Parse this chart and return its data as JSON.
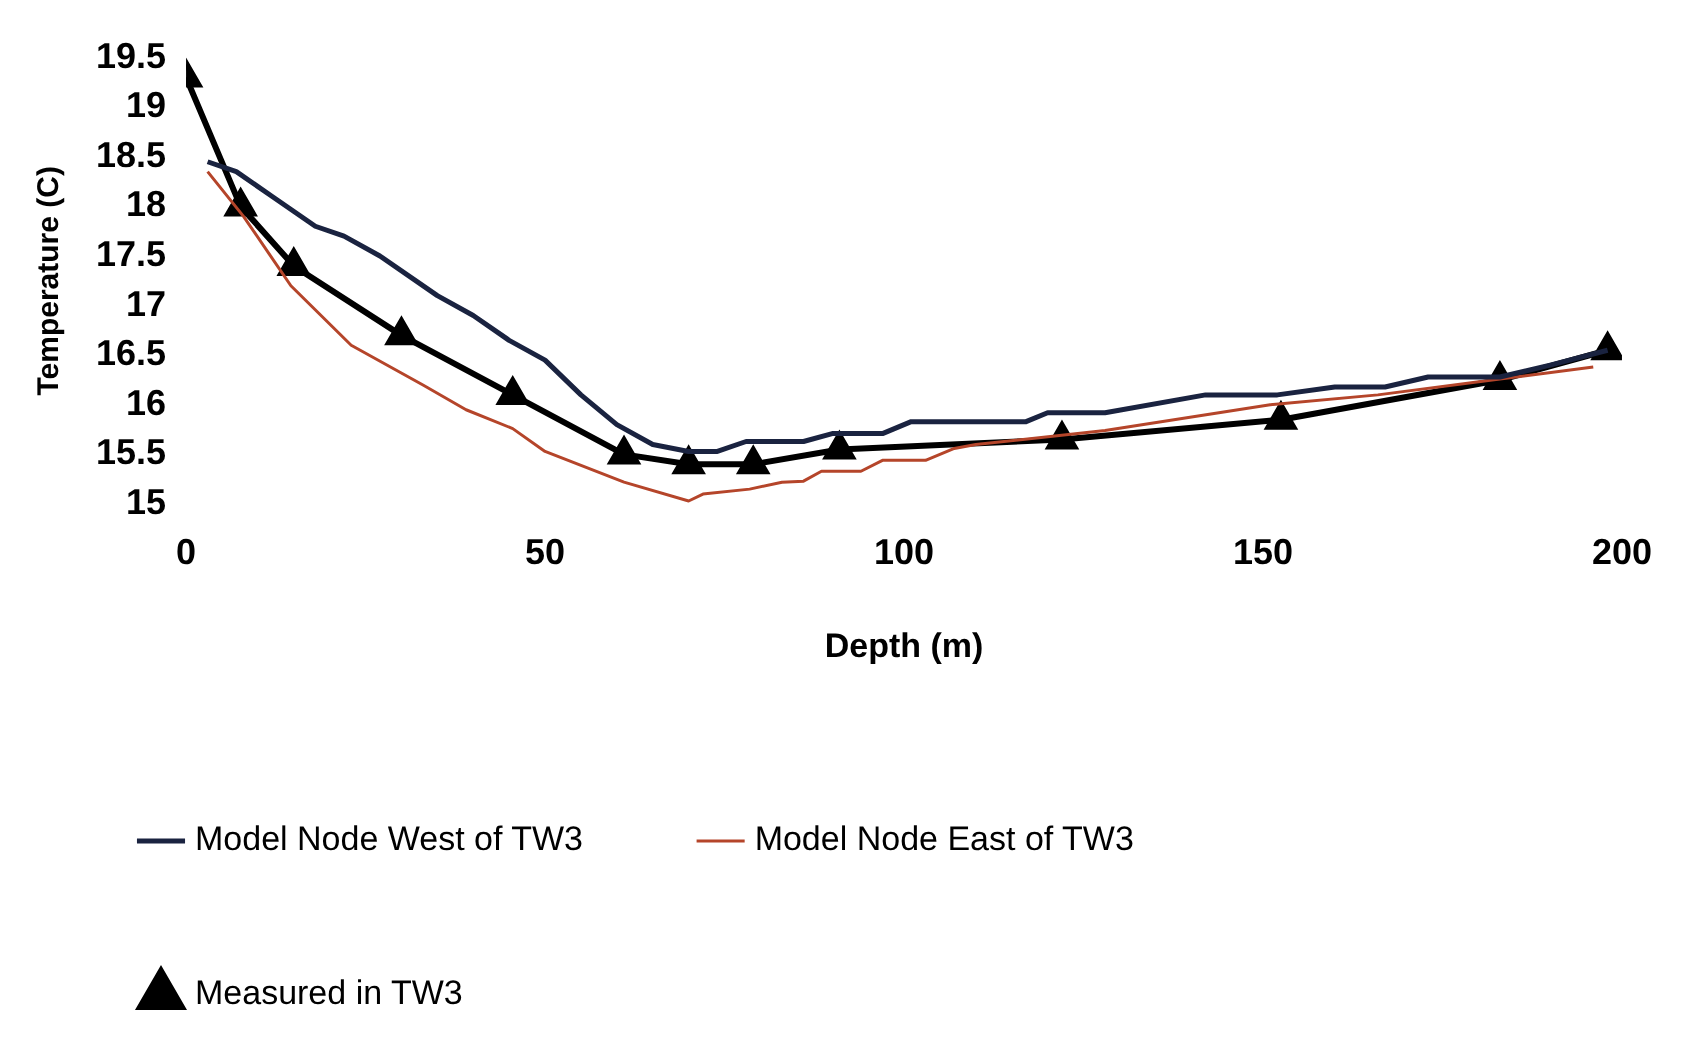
{
  "chart_data": {
    "type": "line",
    "xlabel": "Depth (m)",
    "ylabel": "Temperature (C)",
    "xlim": [
      0,
      200
    ],
    "xticks": [
      0,
      50,
      100,
      150,
      200
    ],
    "ylim": [
      15,
      19.5
    ],
    "yticks": [
      15,
      15.5,
      16,
      16.5,
      17,
      17.5,
      18,
      18.5,
      19,
      19.5
    ],
    "grid": false,
    "legend": "bottom",
    "series": [
      {
        "name": "Model Node West of TW3",
        "color": "#1a2340",
        "marker": "none",
        "x": [
          3,
          7,
          12,
          18,
          22,
          27,
          35,
          40,
          45,
          50,
          55,
          60,
          65,
          70,
          74,
          78,
          86,
          90,
          97,
          101,
          117,
          120,
          128,
          142,
          152,
          160,
          167,
          173,
          183,
          190,
          198
        ],
        "values": [
          18.45,
          18.35,
          18.1,
          17.8,
          17.7,
          17.5,
          17.1,
          16.9,
          16.65,
          16.45,
          16.1,
          15.8,
          15.6,
          15.53,
          15.53,
          15.63,
          15.63,
          15.71,
          15.71,
          15.83,
          15.83,
          15.92,
          15.92,
          16.1,
          16.1,
          16.18,
          16.18,
          16.28,
          16.28,
          16.4,
          16.55
        ]
      },
      {
        "name": "Model Node East of TW3",
        "color": "#b5452a",
        "marker": "none",
        "x": [
          3,
          8,
          14.6,
          23,
          33,
          39,
          45.5,
          50,
          61,
          70,
          72,
          78.5,
          83,
          86,
          88.5,
          94,
          97,
          103,
          107,
          110,
          128,
          151,
          166,
          183,
          196
        ],
        "values": [
          18.35,
          17.9,
          17.2,
          16.6,
          16.2,
          15.95,
          15.76,
          15.53,
          15.22,
          15.03,
          15.1,
          15.15,
          15.22,
          15.23,
          15.33,
          15.33,
          15.44,
          15.44,
          15.56,
          15.6,
          15.74,
          16.0,
          16.1,
          16.26,
          16.38
        ]
      },
      {
        "name": "Measured in TW3",
        "color": "#000000",
        "marker": "triangle",
        "x": [
          0,
          7.6,
          15,
          30,
          45.5,
          61,
          70,
          79,
          91,
          122,
          152.5,
          183,
          198
        ],
        "values": [
          19.3,
          18.0,
          17.4,
          16.7,
          16.1,
          15.5,
          15.4,
          15.4,
          15.55,
          15.65,
          15.85,
          16.25,
          16.55
        ]
      }
    ]
  }
}
